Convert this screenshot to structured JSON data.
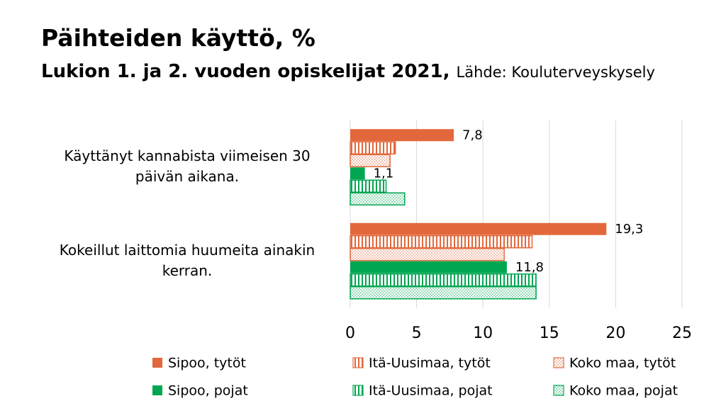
{
  "chart_data": {
    "type": "hbar",
    "title": "Päihteiden käyttö, %",
    "subtitle": "Lukion 1. ja 2. vuoden opiskelijat 2021,",
    "source": "Lähde: Kouluterveyskysely",
    "categories": [
      "Käyttänyt kannabista viimeisen 30 päivän aikana.",
      "Kokeillut laittomia huumeita ainakin kerran."
    ],
    "series": [
      {
        "name": "Sipoo, tytöt",
        "color": "#e2683c",
        "hatch": "solid",
        "values": [
          7.8,
          19.3
        ],
        "value_labels": [
          "7,8",
          "19,3"
        ]
      },
      {
        "name": "Itä-Uusimaa, tytöt",
        "color": "#e2683c",
        "hatch": "vertical",
        "values": [
          3.4,
          13.7
        ]
      },
      {
        "name": "Koko maa, tytöt",
        "color": "#e2683c",
        "hatch": "dots",
        "values": [
          3.0,
          11.6
        ]
      },
      {
        "name": "Sipoo, pojat",
        "color": "#00a651",
        "hatch": "solid",
        "values": [
          1.1,
          11.8
        ],
        "value_labels": [
          "1,1",
          "11,8"
        ]
      },
      {
        "name": "Itä-Uusimaa, pojat",
        "color": "#00a651",
        "hatch": "vertical",
        "values": [
          2.7,
          14.0
        ]
      },
      {
        "name": "Koko maa, pojat",
        "color": "#00a651",
        "hatch": "dots",
        "values": [
          4.1,
          14.0
        ]
      }
    ],
    "xlim": [
      0,
      25
    ],
    "xticks": [
      0,
      5,
      10,
      15,
      20,
      25
    ],
    "grid": true
  }
}
